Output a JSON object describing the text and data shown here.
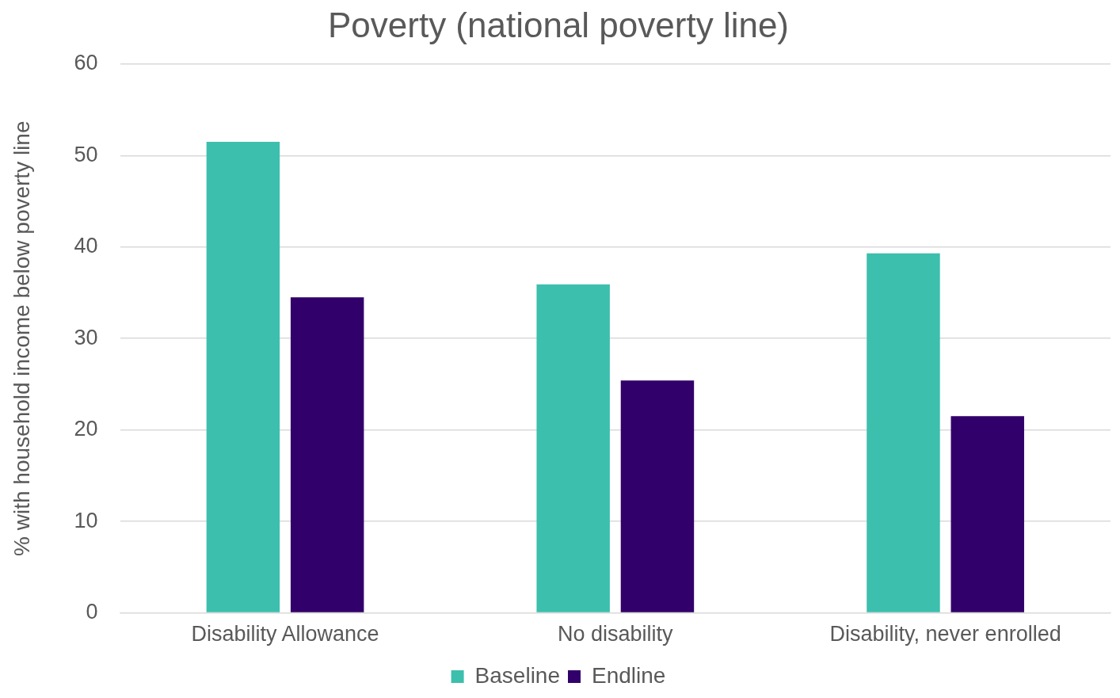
{
  "chart_data": {
    "type": "bar",
    "title": "Poverty (national poverty line)",
    "ylabel": "% with household income below poverty line",
    "categories": [
      "Disability Allowance",
      "No disability",
      "Disability, never enrolled"
    ],
    "series": [
      {
        "name": "Baseline",
        "color": "#3dbfad",
        "values": [
          51.5,
          35.9,
          39.3
        ]
      },
      {
        "name": "Endline",
        "color": "#32006a",
        "values": [
          34.5,
          25.4,
          21.5
        ]
      }
    ],
    "ylim": [
      0,
      60
    ],
    "yticks": [
      0,
      10,
      20,
      30,
      40,
      50,
      60
    ],
    "grid": "y",
    "legend": "bottom"
  }
}
